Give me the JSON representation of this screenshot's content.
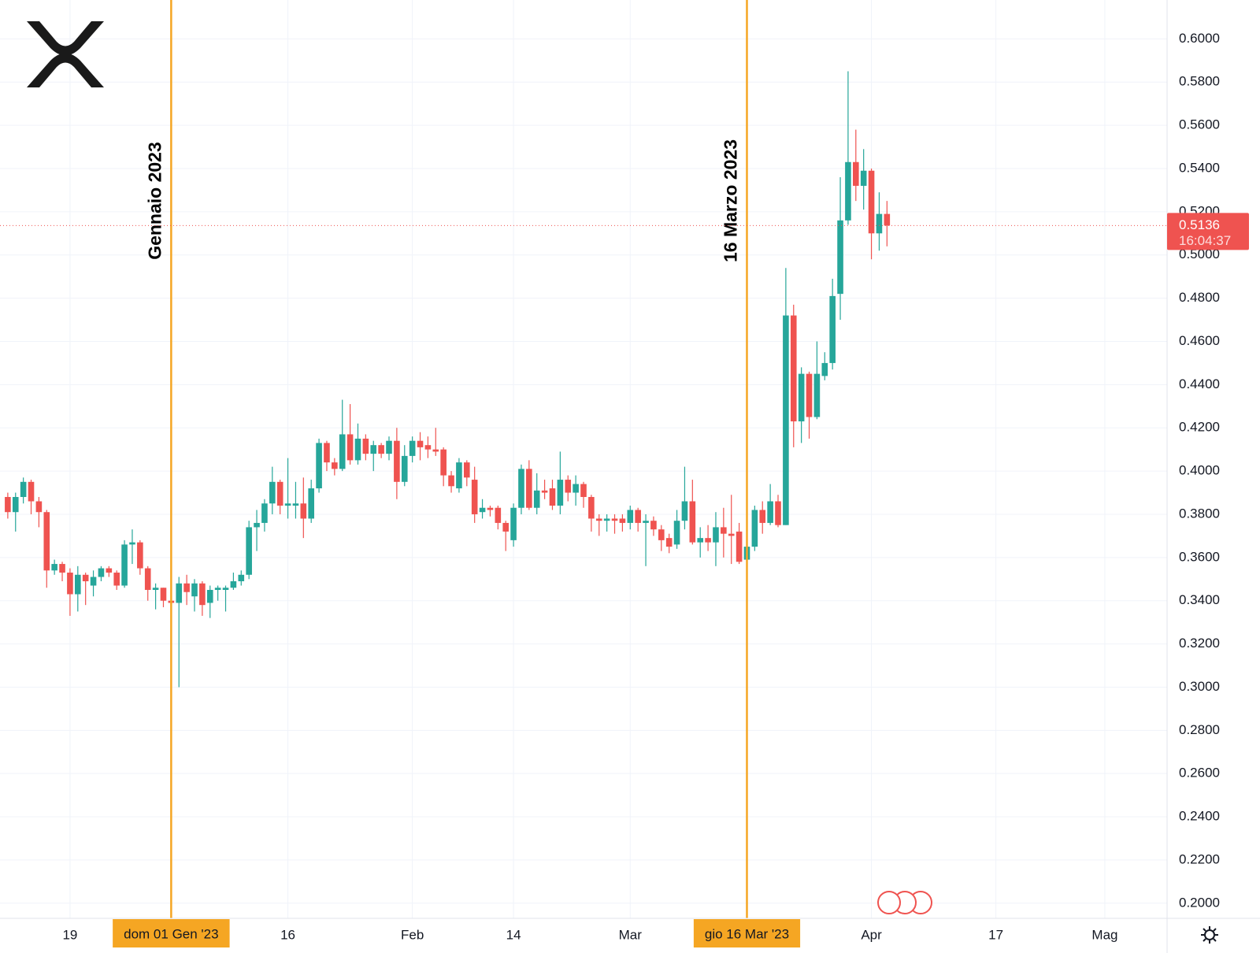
{
  "chart_data": {
    "type": "candlestick",
    "up_color": "#26a69a",
    "down_color": "#ef5350",
    "x": [
      "2022-12-11",
      "2022-12-12",
      "2022-12-13",
      "2022-12-14",
      "2022-12-15",
      "2022-12-16",
      "2022-12-17",
      "2022-12-18",
      "2022-12-19",
      "2022-12-20",
      "2022-12-21",
      "2022-12-22",
      "2022-12-23",
      "2022-12-24",
      "2022-12-25",
      "2022-12-26",
      "2022-12-27",
      "2022-12-28",
      "2022-12-29",
      "2022-12-30",
      "2022-12-31",
      "2023-01-01",
      "2023-01-02",
      "2023-01-03",
      "2023-01-04",
      "2023-01-05",
      "2023-01-06",
      "2023-01-07",
      "2023-01-08",
      "2023-01-09",
      "2023-01-10",
      "2023-01-11",
      "2023-01-12",
      "2023-01-13",
      "2023-01-14",
      "2023-01-15",
      "2023-01-16",
      "2023-01-17",
      "2023-01-18",
      "2023-01-19",
      "2023-01-20",
      "2023-01-21",
      "2023-01-22",
      "2023-01-23",
      "2023-01-24",
      "2023-01-25",
      "2023-01-26",
      "2023-01-27",
      "2023-01-28",
      "2023-01-29",
      "2023-01-30",
      "2023-01-31",
      "2023-02-01",
      "2023-02-02",
      "2023-02-03",
      "2023-02-04",
      "2023-02-05",
      "2023-02-06",
      "2023-02-07",
      "2023-02-08",
      "2023-02-09",
      "2023-02-10",
      "2023-02-11",
      "2023-02-12",
      "2023-02-13",
      "2023-02-14",
      "2023-02-15",
      "2023-02-16",
      "2023-02-17",
      "2023-02-18",
      "2023-02-19",
      "2023-02-20",
      "2023-02-21",
      "2023-02-22",
      "2023-02-23",
      "2023-02-24",
      "2023-02-25",
      "2023-02-26",
      "2023-02-27",
      "2023-02-28",
      "2023-03-01",
      "2023-03-02",
      "2023-03-03",
      "2023-03-04",
      "2023-03-05",
      "2023-03-06",
      "2023-03-07",
      "2023-03-08",
      "2023-03-09",
      "2023-03-10",
      "2023-03-11",
      "2023-03-12",
      "2023-03-13",
      "2023-03-14",
      "2023-03-15",
      "2023-03-16",
      "2023-03-17",
      "2023-03-18",
      "2023-03-19",
      "2023-03-20",
      "2023-03-21",
      "2023-03-22",
      "2023-03-23",
      "2023-03-24",
      "2023-03-25",
      "2023-03-26",
      "2023-03-27",
      "2023-03-28",
      "2023-03-29",
      "2023-03-30",
      "2023-03-31",
      "2023-04-01",
      "2023-04-02",
      "2023-04-03"
    ],
    "open": [
      0.388,
      0.381,
      0.388,
      0.395,
      0.386,
      0.381,
      0.354,
      0.357,
      0.353,
      0.343,
      0.352,
      0.347,
      0.351,
      0.355,
      0.353,
      0.347,
      0.366,
      0.367,
      0.355,
      0.345,
      0.346,
      0.34,
      0.339,
      0.348,
      0.342,
      0.348,
      0.339,
      0.345,
      0.345,
      0.346,
      0.349,
      0.352,
      0.374,
      0.376,
      0.385,
      0.395,
      0.384,
      0.384,
      0.385,
      0.378,
      0.392,
      0.413,
      0.404,
      0.401,
      0.417,
      0.405,
      0.415,
      0.408,
      0.412,
      0.408,
      0.414,
      0.395,
      0.407,
      0.414,
      0.412,
      0.41,
      0.41,
      0.398,
      0.392,
      0.404,
      0.396,
      0.381,
      0.383,
      0.383,
      0.376,
      0.368,
      0.383,
      0.401,
      0.383,
      0.391,
      0.392,
      0.384,
      0.396,
      0.39,
      0.394,
      0.388,
      0.378,
      0.377,
      0.378,
      0.378,
      0.376,
      0.382,
      0.376,
      0.377,
      0.373,
      0.369,
      0.366,
      0.377,
      0.386,
      0.367,
      0.369,
      0.367,
      0.374,
      0.371,
      0.372,
      0.359,
      0.365,
      0.382,
      0.376,
      0.386,
      0.375,
      0.472,
      0.423,
      0.445,
      0.425,
      0.444,
      0.45,
      0.482,
      0.516,
      0.543,
      0.532,
      0.539,
      0.51,
      0.519
    ],
    "high": [
      0.39,
      0.39,
      0.397,
      0.396,
      0.388,
      0.382,
      0.359,
      0.358,
      0.355,
      0.356,
      0.353,
      0.354,
      0.356,
      0.356,
      0.354,
      0.368,
      0.373,
      0.368,
      0.356,
      0.348,
      0.346,
      0.345,
      0.351,
      0.352,
      0.35,
      0.349,
      0.347,
      0.347,
      0.347,
      0.353,
      0.354,
      0.377,
      0.382,
      0.387,
      0.402,
      0.396,
      0.406,
      0.395,
      0.397,
      0.396,
      0.415,
      0.414,
      0.406,
      0.433,
      0.431,
      0.422,
      0.417,
      0.414,
      0.413,
      0.416,
      0.42,
      0.412,
      0.416,
      0.418,
      0.416,
      0.42,
      0.411,
      0.4,
      0.406,
      0.405,
      0.402,
      0.387,
      0.384,
      0.384,
      0.377,
      0.385,
      0.403,
      0.405,
      0.399,
      0.396,
      0.396,
      0.409,
      0.398,
      0.398,
      0.395,
      0.389,
      0.38,
      0.38,
      0.38,
      0.38,
      0.384,
      0.383,
      0.38,
      0.379,
      0.375,
      0.371,
      0.382,
      0.402,
      0.396,
      0.374,
      0.375,
      0.381,
      0.383,
      0.389,
      0.376,
      0.37,
      0.384,
      0.386,
      0.394,
      0.389,
      0.494,
      0.477,
      0.448,
      0.446,
      0.46,
      0.455,
      0.489,
      0.536,
      0.585,
      0.558,
      0.549,
      0.54,
      0.529,
      0.525
    ],
    "low": [
      0.378,
      0.372,
      0.385,
      0.38,
      0.374,
      0.346,
      0.352,
      0.349,
      0.333,
      0.335,
      0.338,
      0.342,
      0.349,
      0.351,
      0.345,
      0.346,
      0.357,
      0.352,
      0.34,
      0.336,
      0.337,
      0.336,
      0.3,
      0.338,
      0.335,
      0.333,
      0.332,
      0.34,
      0.335,
      0.345,
      0.347,
      0.35,
      0.363,
      0.372,
      0.38,
      0.38,
      0.378,
      0.378,
      0.369,
      0.376,
      0.39,
      0.4,
      0.398,
      0.4,
      0.403,
      0.403,
      0.405,
      0.4,
      0.406,
      0.405,
      0.387,
      0.393,
      0.404,
      0.405,
      0.406,
      0.407,
      0.393,
      0.39,
      0.39,
      0.393,
      0.376,
      0.378,
      0.379,
      0.373,
      0.363,
      0.365,
      0.38,
      0.382,
      0.38,
      0.387,
      0.382,
      0.38,
      0.386,
      0.384,
      0.383,
      0.372,
      0.37,
      0.372,
      0.371,
      0.372,
      0.373,
      0.372,
      0.356,
      0.37,
      0.363,
      0.362,
      0.364,
      0.373,
      0.366,
      0.36,
      0.363,
      0.356,
      0.36,
      0.357,
      0.357,
      0.358,
      0.363,
      0.371,
      0.375,
      0.374,
      0.375,
      0.411,
      0.413,
      0.415,
      0.424,
      0.442,
      0.447,
      0.47,
      0.514,
      0.525,
      0.521,
      0.498,
      0.502,
      0.504
    ],
    "close": [
      0.381,
      0.388,
      0.395,
      0.386,
      0.381,
      0.354,
      0.357,
      0.353,
      0.343,
      0.352,
      0.349,
      0.351,
      0.355,
      0.353,
      0.347,
      0.366,
      0.367,
      0.355,
      0.345,
      0.346,
      0.34,
      0.339,
      0.348,
      0.344,
      0.348,
      0.338,
      0.345,
      0.346,
      0.346,
      0.349,
      0.352,
      0.374,
      0.376,
      0.385,
      0.395,
      0.384,
      0.385,
      0.385,
      0.378,
      0.392,
      0.413,
      0.404,
      0.401,
      0.417,
      0.405,
      0.415,
      0.408,
      0.412,
      0.408,
      0.414,
      0.395,
      0.407,
      0.414,
      0.411,
      0.41,
      0.409,
      0.398,
      0.393,
      0.404,
      0.397,
      0.38,
      0.383,
      0.382,
      0.376,
      0.372,
      0.383,
      0.401,
      0.383,
      0.391,
      0.39,
      0.384,
      0.396,
      0.39,
      0.394,
      0.388,
      0.378,
      0.377,
      0.378,
      0.377,
      0.376,
      0.382,
      0.376,
      0.377,
      0.373,
      0.368,
      0.365,
      0.377,
      0.386,
      0.367,
      0.369,
      0.367,
      0.374,
      0.371,
      0.37,
      0.358,
      0.365,
      0.382,
      0.376,
      0.386,
      0.375,
      0.472,
      0.423,
      0.445,
      0.425,
      0.445,
      0.45,
      0.481,
      0.516,
      0.543,
      0.532,
      0.539,
      0.51,
      0.519,
      0.5136
    ],
    "xlim": [
      "2022-12-10",
      "2023-05-09"
    ],
    "xticks": [
      {
        "value": "2022-12-19",
        "label": "19"
      },
      {
        "value": "2023-01-16",
        "label": "16"
      },
      {
        "value": "2023-02-01",
        "label": "Feb"
      },
      {
        "value": "2023-02-14",
        "label": "14"
      },
      {
        "value": "2023-03-01",
        "label": "Mar"
      },
      {
        "value": "2023-04-01",
        "label": "Apr"
      },
      {
        "value": "2023-04-17",
        "label": "17"
      },
      {
        "value": "2023-05-01",
        "label": "Mag"
      }
    ],
    "ylim": [
      0.193,
      0.618
    ],
    "yticks": [
      {
        "value": 0.2,
        "label": "0.2000"
      },
      {
        "value": 0.22,
        "label": "0.2200"
      },
      {
        "value": 0.24,
        "label": "0.2400"
      },
      {
        "value": 0.26,
        "label": "0.2600"
      },
      {
        "value": 0.28,
        "label": "0.2800"
      },
      {
        "value": 0.3,
        "label": "0.3000"
      },
      {
        "value": 0.32,
        "label": "0.3200"
      },
      {
        "value": 0.34,
        "label": "0.3400"
      },
      {
        "value": 0.36,
        "label": "0.3600"
      },
      {
        "value": 0.38,
        "label": "0.3800"
      },
      {
        "value": 0.4,
        "label": "0.4000"
      },
      {
        "value": 0.42,
        "label": "0.4200"
      },
      {
        "value": 0.44,
        "label": "0.4400"
      },
      {
        "value": 0.46,
        "label": "0.4600"
      },
      {
        "value": 0.48,
        "label": "0.4800"
      },
      {
        "value": 0.5,
        "label": "0.5000"
      },
      {
        "value": 0.52,
        "label": "0.5200"
      },
      {
        "value": 0.54,
        "label": "0.5400"
      },
      {
        "value": 0.56,
        "label": "0.5600"
      },
      {
        "value": 0.58,
        "label": "0.5800"
      },
      {
        "value": 0.6,
        "label": "0.6000"
      }
    ],
    "grid": true,
    "annotations": [
      {
        "x": "2023-01-01",
        "text": "Gennaio 2023",
        "axis_label": "dom 01 Gen '23",
        "color": "#f5a623"
      },
      {
        "x": "2023-03-16",
        "text": "16 Marzo 2023",
        "axis_label": "gio 16 Mar '23",
        "color": "#f5a623"
      }
    ],
    "last_price": 0.5136,
    "countdown": "16:04:37"
  }
}
